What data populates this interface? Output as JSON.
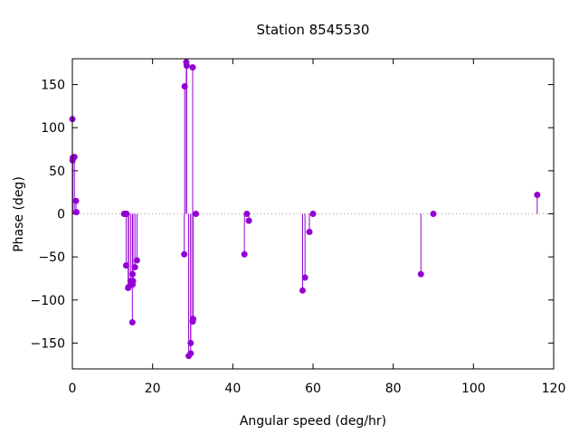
{
  "chart_data": {
    "type": "scatter",
    "style": "impulse-with-points",
    "title": "Station 8545530",
    "xlabel": "Angular speed (deg/hr)",
    "ylabel": "Phase (deg)",
    "xlim": [
      0,
      120
    ],
    "ylim": [
      -180,
      180
    ],
    "xticks": [
      0,
      20,
      40,
      60,
      80,
      100,
      120
    ],
    "yticks": [
      -150,
      -100,
      -50,
      0,
      50,
      100,
      150
    ],
    "zero_line": "dotted",
    "grid": false,
    "color": "#9400d3",
    "points": [
      {
        "x": 0.0,
        "y": 110
      },
      {
        "x": 0.04,
        "y": 62
      },
      {
        "x": 0.08,
        "y": 65
      },
      {
        "x": 0.5,
        "y": 66
      },
      {
        "x": 0.9,
        "y": 15
      },
      {
        "x": 1.0,
        "y": 2
      },
      {
        "x": 12.9,
        "y": 0
      },
      {
        "x": 13.0,
        "y": 0
      },
      {
        "x": 13.4,
        "y": -60
      },
      {
        "x": 13.5,
        "y": 0
      },
      {
        "x": 13.9,
        "y": -86
      },
      {
        "x": 14.0,
        "y": -85
      },
      {
        "x": 14.5,
        "y": -78
      },
      {
        "x": 14.96,
        "y": -126
      },
      {
        "x": 15.0,
        "y": -70
      },
      {
        "x": 15.0,
        "y": -82
      },
      {
        "x": 15.1,
        "y": -78
      },
      {
        "x": 15.6,
        "y": -62
      },
      {
        "x": 16.1,
        "y": -54
      },
      {
        "x": 27.9,
        "y": -47
      },
      {
        "x": 28.0,
        "y": 148
      },
      {
        "x": 28.4,
        "y": 176
      },
      {
        "x": 28.5,
        "y": 172
      },
      {
        "x": 29.0,
        "y": -165
      },
      {
        "x": 29.5,
        "y": -150
      },
      {
        "x": 29.5,
        "y": -162
      },
      {
        "x": 30.0,
        "y": 170
      },
      {
        "x": 30.0,
        "y": -125
      },
      {
        "x": 30.1,
        "y": -122
      },
      {
        "x": 30.8,
        "y": 0
      },
      {
        "x": 42.9,
        "y": -47
      },
      {
        "x": 43.5,
        "y": 0
      },
      {
        "x": 44.0,
        "y": -8
      },
      {
        "x": 57.4,
        "y": -89
      },
      {
        "x": 58.0,
        "y": -74
      },
      {
        "x": 59.1,
        "y": -21
      },
      {
        "x": 60.0,
        "y": 0
      },
      {
        "x": 86.9,
        "y": -70
      },
      {
        "x": 90.0,
        "y": 0
      },
      {
        "x": 115.9,
        "y": 22
      }
    ]
  }
}
